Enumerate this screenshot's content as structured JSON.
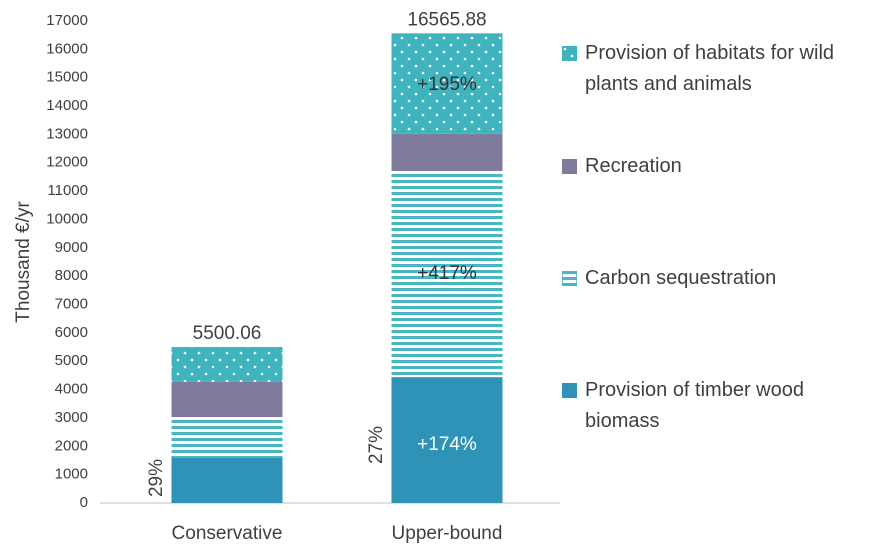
{
  "chart_data": {
    "type": "stacked_bar",
    "y_label": "Thousand €/yr",
    "categories": [
      "Conservative",
      "Upper-bound"
    ],
    "series": [
      {
        "name": "Provision of timber wood biomass",
        "color": "#2f93b8",
        "pattern": "solid",
        "values": [
          1600,
          4440
        ]
      },
      {
        "name": "Carbon sequestration",
        "color": "#4ab6c3",
        "pattern": "hlines",
        "values": [
          1430,
          7270
        ]
      },
      {
        "name": "Recreation",
        "color": "#7f7b9c",
        "pattern": "solid",
        "values": [
          1240,
          1310
        ]
      },
      {
        "name": "Provision of habitats for wild plants and animals",
        "color": "#3fb3be",
        "pattern": "dots",
        "values": [
          1230,
          3545
        ]
      }
    ],
    "totals": [
      5500.06,
      16565.88
    ],
    "annotations": [
      "29%",
      "27%",
      "+174%",
      "+417%",
      "+195%"
    ],
    "ylim": [
      0,
      17000
    ],
    "yticks": [
      0,
      1000,
      2000,
      3000,
      4000,
      5000,
      6000,
      7000,
      8000,
      9000,
      10000,
      11000,
      12000,
      13000,
      14000,
      15000,
      16000,
      17000
    ]
  }
}
